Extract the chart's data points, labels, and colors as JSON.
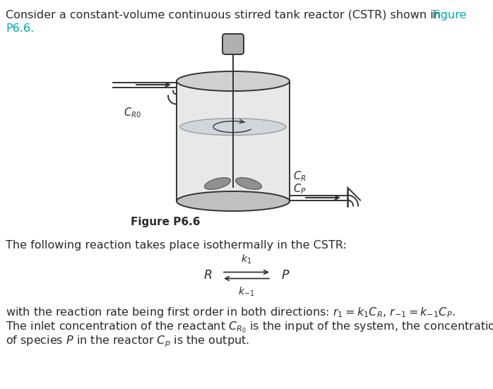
{
  "bg_color": "#ffffff",
  "text_color": "#2a2a2a",
  "link_color": "#00aaaa",
  "diagram_line_color": "#333333",
  "diagram_fill_light": "#e8e8e8",
  "diagram_fill_dark": "#c0c0c0",
  "diagram_fill_medium": "#d0d0d0",
  "liquid_fill": "#c8d0d8",
  "motor_fill": "#b0b0b0",
  "blade_fill": "#909090",
  "figure_caption": "Figure P6.6"
}
